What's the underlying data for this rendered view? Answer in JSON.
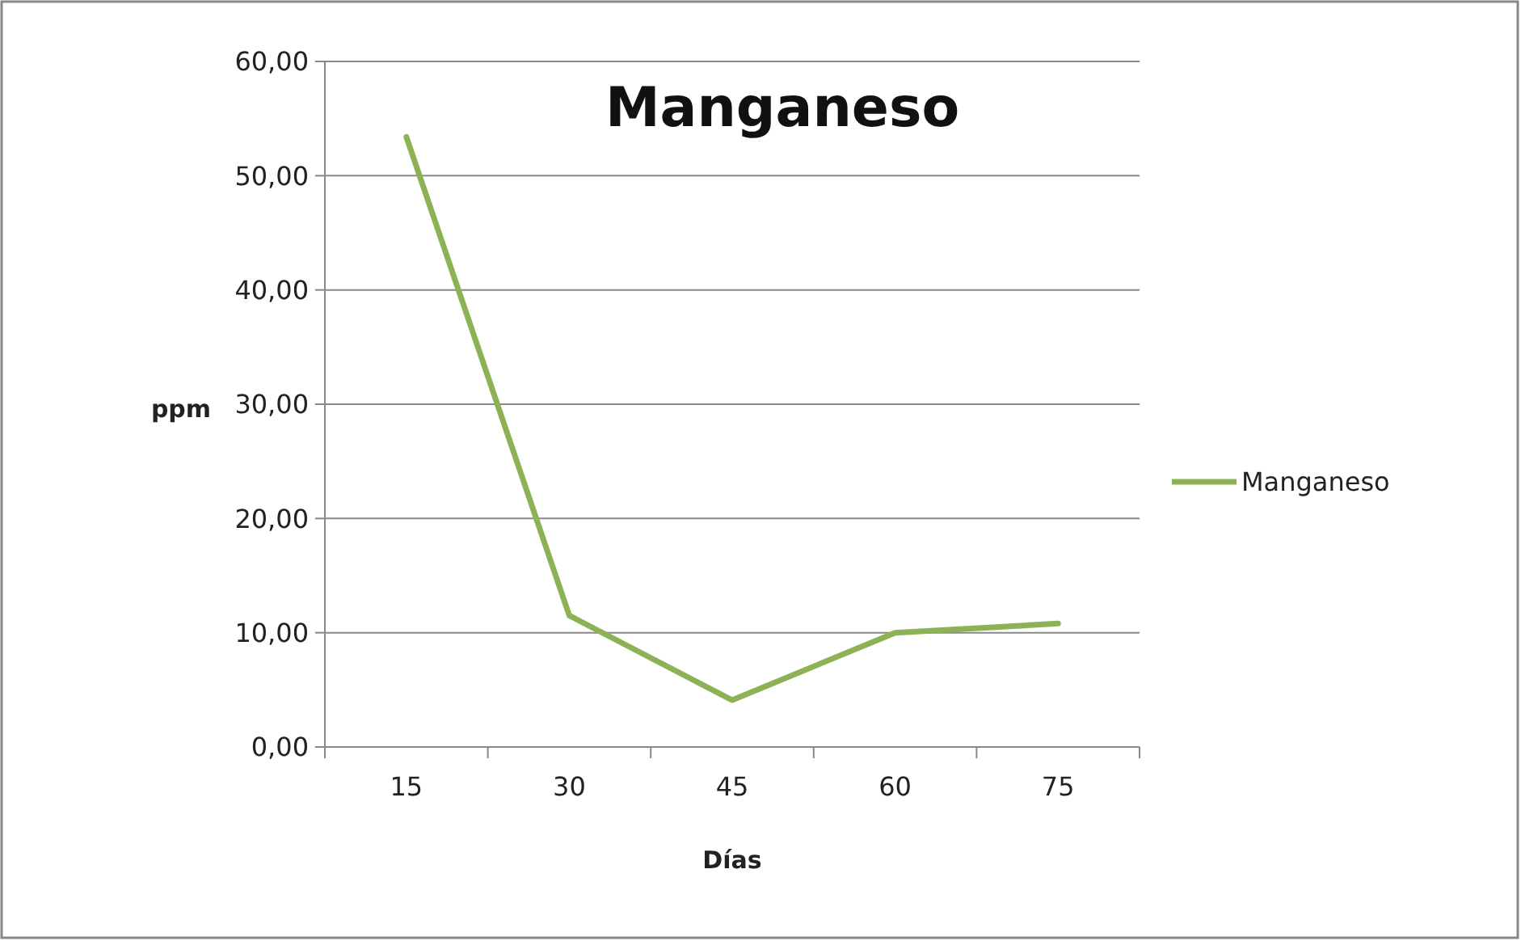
{
  "chart_data": {
    "type": "line",
    "title": "Manganeso",
    "xlabel": "Días",
    "ylabel": "ppm",
    "categories": [
      "15",
      "30",
      "45",
      "60",
      "75"
    ],
    "series": [
      {
        "name": "Manganeso",
        "color": "#8db255",
        "values": [
          53.4,
          11.5,
          4.1,
          10.0,
          10.8
        ]
      }
    ],
    "ylim": [
      0,
      60
    ],
    "yticks": [
      {
        "value": 0,
        "label": "0,00"
      },
      {
        "value": 10,
        "label": "10,00"
      },
      {
        "value": 20,
        "label": "20,00"
      },
      {
        "value": 30,
        "label": "30,00"
      },
      {
        "value": 40,
        "label": "40,00"
      },
      {
        "value": 50,
        "label": "50,00"
      },
      {
        "value": 60,
        "label": "60,00"
      }
    ],
    "grid": "y",
    "legend": "right",
    "marker": "none",
    "line_style": "solid"
  }
}
